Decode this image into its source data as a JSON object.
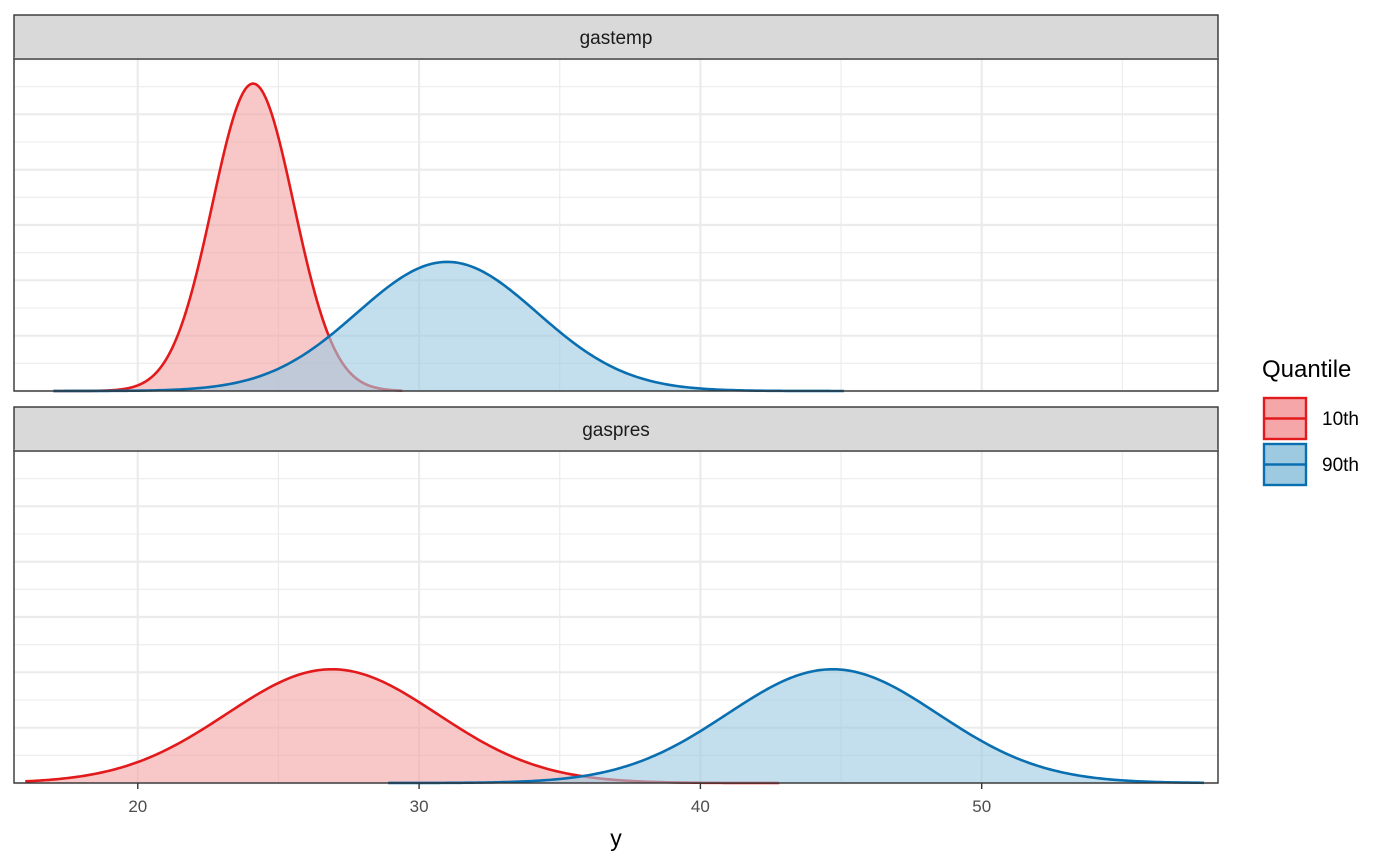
{
  "chart_data": {
    "type": "area",
    "subtype": "density",
    "xlabel": "y",
    "ylabel": "",
    "xlim": [
      15.6,
      58.4
    ],
    "x_ticks": [
      20,
      30,
      40,
      50
    ],
    "x_tick_labels": [
      "20",
      "30",
      "40",
      "50"
    ],
    "y_axis_labels_shown": false,
    "grid": true,
    "legend": {
      "title": "Quantile",
      "placement": "right",
      "entries": [
        "10th",
        "90th"
      ]
    },
    "colors": {
      "10th": {
        "line": "#e31a1c",
        "fill": "#f4a6a8"
      },
      "90th": {
        "line": "#0a6fb0",
        "fill": "#9ecae1"
      }
    },
    "panels": [
      {
        "strip": "gastemp",
        "ylim": [
          0,
          1.08
        ],
        "series": [
          {
            "name": "10th",
            "shape": "normal",
            "mean": 24.1,
            "sd": 1.45,
            "peak": 1.0,
            "range": [
              17.0,
              29.4
            ]
          },
          {
            "name": "90th",
            "shape": "normal",
            "mean": 31.0,
            "sd": 3.2,
            "peak": 0.42,
            "range": [
              17.0,
              45.1
            ]
          }
        ]
      },
      {
        "strip": "gaspres",
        "ylim": [
          0,
          1.08
        ],
        "series": [
          {
            "name": "10th",
            "shape": "normal",
            "mean": 26.9,
            "sd": 3.75,
            "peak": 0.37,
            "range": [
              16.0,
              42.8
            ]
          },
          {
            "name": "90th",
            "shape": "normal",
            "mean": 44.7,
            "sd": 3.75,
            "peak": 0.37,
            "range": [
              28.9,
              57.9
            ]
          }
        ]
      }
    ]
  }
}
